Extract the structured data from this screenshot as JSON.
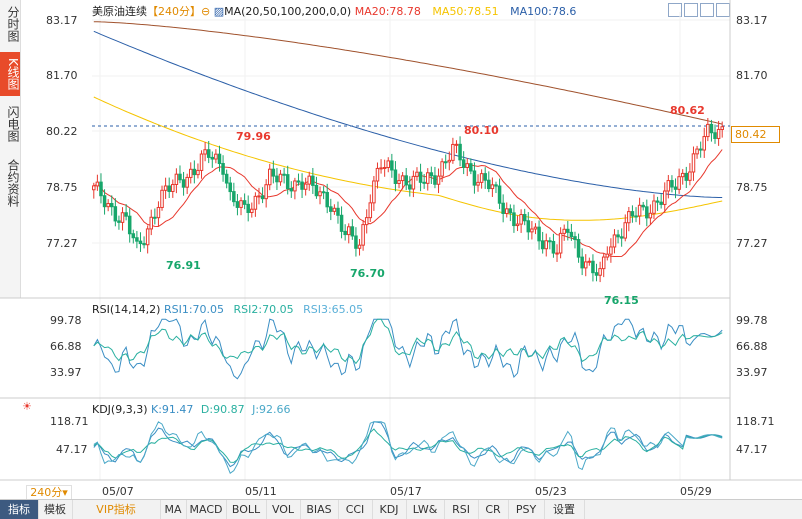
{
  "sidebar": {
    "tabs": [
      {
        "label": "分时图",
        "active": false
      },
      {
        "label": "K线图",
        "active": true
      },
      {
        "label": "闪电图",
        "active": false
      },
      {
        "label": "合约资料",
        "active": false
      }
    ]
  },
  "header": {
    "title": "美原油连续",
    "period": "【240分】",
    "ma_label": "MA(20,50,100,200,0,0)",
    "ma20": "MA20:78.78",
    "ma50": "MA50:78.51",
    "ma100": "MA100:78.6"
  },
  "colors": {
    "up": "#e8382d",
    "down": "#17a66b",
    "ma20": "#e8382d",
    "ma50": "#f5c400",
    "ma100": "#2b5fa8",
    "ma200": "#a0522d",
    "rsi1": "#3a8ec4",
    "rsi2": "#2ab0a0",
    "rsi3": "#5bb0d8",
    "kdj_k": "#3a8ec4",
    "kdj_d": "#2ab0a0",
    "kdj_j": "#4aa8c8",
    "accent": "#e08a00"
  },
  "main_axis": {
    "ticks": [
      "83.17",
      "81.70",
      "80.22",
      "78.75",
      "77.27"
    ],
    "current_price": "80.42"
  },
  "annotations": {
    "high1": "79.96",
    "high2": "80.10",
    "high3": "80.62",
    "low1": "76.91",
    "low2": "76.70",
    "low3": "76.15"
  },
  "rsi": {
    "label": "RSI(14,14,2)",
    "rsi1": "RSI1:70.05",
    "rsi2": "RSI2:70.05",
    "rsi3": "RSI3:65.05",
    "ticks": [
      "99.78",
      "66.88",
      "33.97"
    ]
  },
  "kdj": {
    "label": "KDJ(9,3,3)",
    "k": "K:91.47",
    "d": "D:90.87",
    "j": "J:92.66",
    "ticks": [
      "118.71",
      "47.17"
    ]
  },
  "x_axis": {
    "labels": [
      "05/07",
      "05/11",
      "05/17",
      "05/23",
      "05/29"
    ]
  },
  "period_selector": "240分",
  "bottom_bar": {
    "items": [
      "指标",
      "模板",
      "VIP指标",
      "MA",
      "MACD",
      "BOLL",
      "VOL",
      "BIAS",
      "CCI",
      "KDJ",
      "LW&",
      "RSI",
      "CR",
      "PSY",
      "设置"
    ]
  },
  "chart_data": [
    {
      "type": "candlestick",
      "title": "美原油连续",
      "ylim": [
        76.0,
        83.4
      ],
      "x_labels": [
        "05/07",
        "05/11",
        "05/17",
        "05/23",
        "05/29"
      ],
      "anchors": [
        [
          0,
          78.8
        ],
        [
          4,
          78.4
        ],
        [
          9,
          78.0
        ],
        [
          12,
          77.2
        ],
        [
          14,
          77.6
        ],
        [
          18,
          78.5
        ],
        [
          24,
          79.1
        ],
        [
          28,
          79.3
        ],
        [
          32,
          79.7
        ],
        [
          36,
          79.5
        ],
        [
          38,
          78.6
        ],
        [
          42,
          78.2
        ],
        [
          46,
          78.7
        ],
        [
          49,
          79.1
        ],
        [
          54,
          79.0
        ],
        [
          58,
          79.0
        ],
        [
          61,
          78.8
        ],
        [
          66,
          78.5
        ],
        [
          70,
          77.6
        ],
        [
          74,
          77.4
        ],
        [
          77,
          78.7
        ],
        [
          80,
          79.4
        ],
        [
          84,
          79.2
        ],
        [
          88,
          79.0
        ],
        [
          92,
          79.0
        ],
        [
          96,
          79.3
        ],
        [
          100,
          79.8
        ],
        [
          103,
          79.5
        ],
        [
          106,
          79.2
        ],
        [
          110,
          78.9
        ],
        [
          114,
          78.4
        ],
        [
          118,
          78.0
        ],
        [
          122,
          77.7
        ],
        [
          126,
          77.5
        ],
        [
          129,
          77.2
        ],
        [
          132,
          77.8
        ],
        [
          135,
          77.2
        ],
        [
          138,
          76.8
        ],
        [
          141,
          76.5
        ],
        [
          143,
          77.3
        ],
        [
          146,
          77.7
        ],
        [
          150,
          78.1
        ],
        [
          154,
          78.3
        ],
        [
          158,
          78.6
        ],
        [
          162,
          78.9
        ],
        [
          165,
          79.3
        ],
        [
          168,
          79.8
        ],
        [
          171,
          80.2
        ],
        [
          175,
          80.4
        ]
      ],
      "high_annotations": [
        "79.96",
        "80.10",
        "80.62"
      ],
      "low_annotations": [
        "76.91",
        "76.70",
        "76.15"
      ],
      "ma_series": [
        {
          "name": "MA20",
          "start": 78.7,
          "end": 78.78
        },
        {
          "name": "MA50",
          "start": 81.2,
          "end": 78.51
        },
        {
          "name": "MA100",
          "start": 82.9,
          "end": 78.6
        },
        {
          "name": "MA200",
          "start": 83.15,
          "end": 80.5
        }
      ]
    },
    {
      "type": "line",
      "title": "RSI(14,14,2)",
      "ylim": [
        0,
        100
      ],
      "series": [
        {
          "name": "RSI1",
          "last": 70.05
        },
        {
          "name": "RSI2",
          "last": 70.05
        },
        {
          "name": "RSI3",
          "last": 65.05
        }
      ]
    },
    {
      "type": "line",
      "title": "KDJ(9,3,3)",
      "ylim": [
        -20,
        130
      ],
      "series": [
        {
          "name": "K",
          "last": 91.47
        },
        {
          "name": "D",
          "last": 90.87
        },
        {
          "name": "J",
          "last": 92.66
        }
      ]
    }
  ]
}
